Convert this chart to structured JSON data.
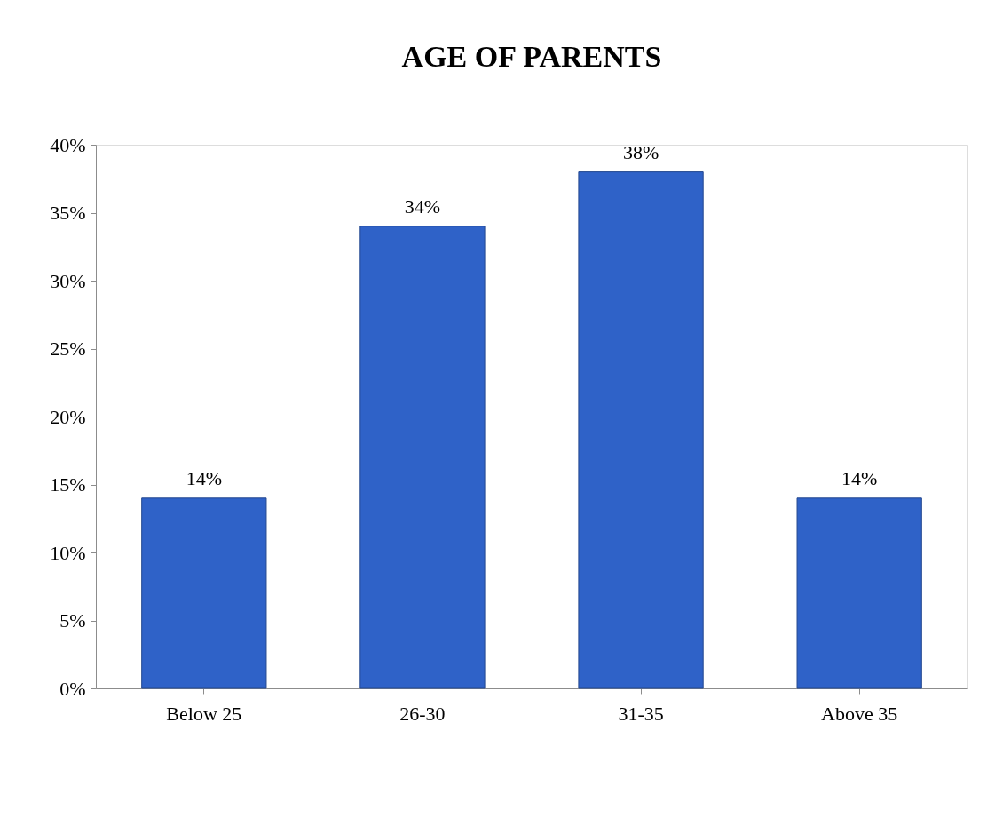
{
  "chart_data": {
    "type": "bar",
    "title": "AGE OF PARENTS",
    "categories": [
      "Below 25",
      "26-30",
      "31-35",
      "Above 35"
    ],
    "values": [
      14,
      34,
      38,
      14
    ],
    "value_labels": [
      "14%",
      "34%",
      "38%",
      "14%"
    ],
    "color": "#2f62c8",
    "ylim": [
      0,
      40
    ],
    "yticks": [
      {
        "value": 0,
        "label": "0%"
      },
      {
        "value": 5,
        "label": "5%"
      },
      {
        "value": 10,
        "label": "10%"
      },
      {
        "value": 15,
        "label": "15%"
      },
      {
        "value": 20,
        "label": "20%"
      },
      {
        "value": 25,
        "label": "25%"
      },
      {
        "value": 30,
        "label": "30%"
      },
      {
        "value": 35,
        "label": "35%"
      },
      {
        "value": 40,
        "label": "40%"
      }
    ],
    "grid": false
  }
}
